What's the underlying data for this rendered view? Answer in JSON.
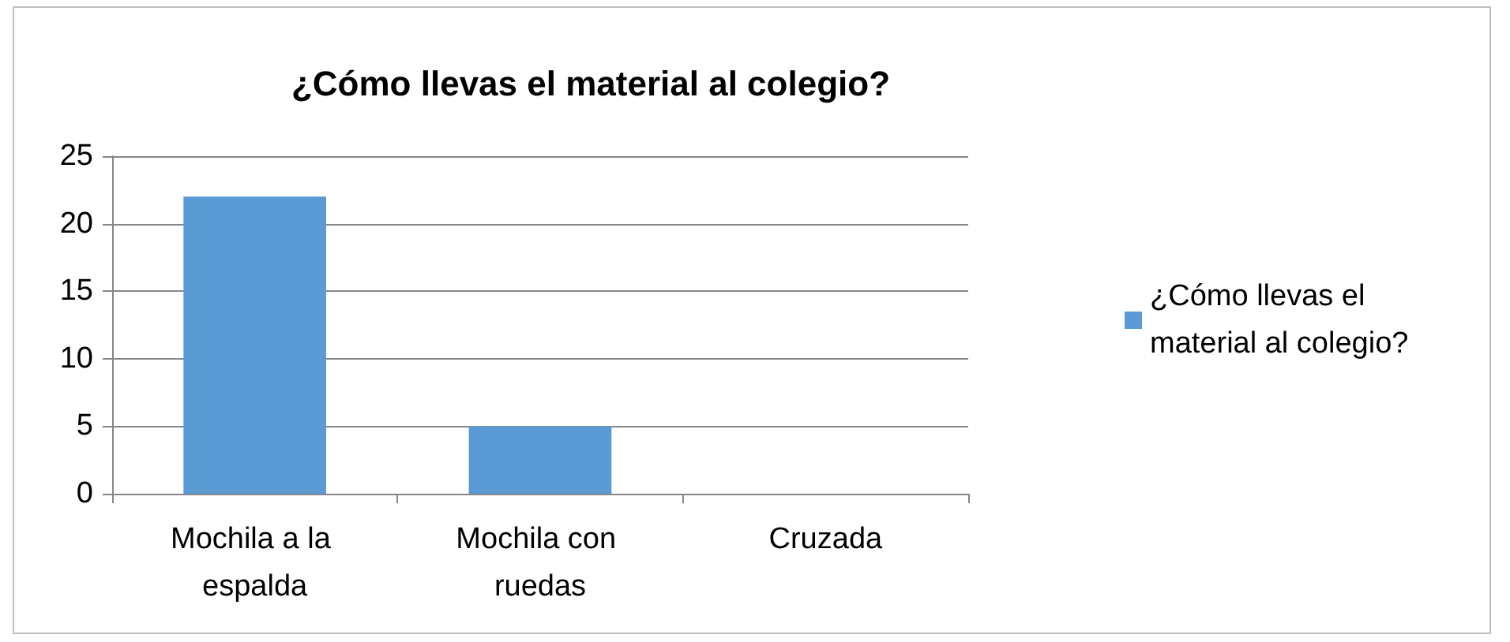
{
  "chart_data": {
    "type": "bar",
    "title": "¿Cómo llevas el material al colegio?",
    "categories": [
      "Mochila a la espalda",
      "Mochila con ruedas",
      "Cruzada"
    ],
    "series": [
      {
        "name": "¿Cómo llevas el material al colegio?",
        "color": "#5b9bd5",
        "values": [
          22,
          5,
          0
        ]
      }
    ],
    "ylim": [
      0,
      25
    ],
    "yticks": [
      0,
      5,
      10,
      15,
      20,
      25
    ],
    "grid": "y",
    "legend": "right"
  }
}
